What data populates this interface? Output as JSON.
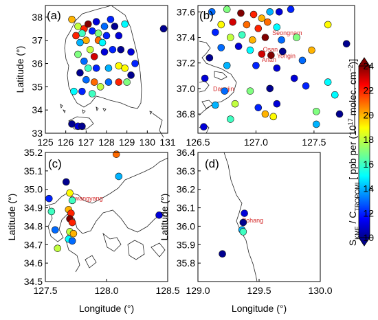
{
  "chart_data": [
    {
      "type": "scatter",
      "panel_label": "(a)",
      "xlabel": "",
      "ylabel": "Latitude (°)",
      "xlim": [
        125,
        131
      ],
      "ylim": [
        33,
        38.5
      ],
      "xticks": [
        "125",
        "126",
        "127",
        "128",
        "129",
        "130",
        "131"
      ],
      "yticks": [
        "33",
        "34",
        "35",
        "36",
        "37",
        "38"
      ],
      "cities": [],
      "points": [
        {
          "x": 126.3,
          "y": 37.9,
          "v": 20
        },
        {
          "x": 126.6,
          "y": 37.6,
          "v": 18
        },
        {
          "x": 126.9,
          "y": 37.5,
          "v": 22
        },
        {
          "x": 127.1,
          "y": 37.7,
          "v": 24
        },
        {
          "x": 126.8,
          "y": 37.3,
          "v": 16
        },
        {
          "x": 127.3,
          "y": 37.4,
          "v": 12
        },
        {
          "x": 127.0,
          "y": 37.0,
          "v": 20
        },
        {
          "x": 126.7,
          "y": 36.9,
          "v": 14
        },
        {
          "x": 127.5,
          "y": 37.8,
          "v": 11
        },
        {
          "x": 127.9,
          "y": 37.6,
          "v": 13
        },
        {
          "x": 128.4,
          "y": 37.6,
          "v": 10
        },
        {
          "x": 128.9,
          "y": 37.7,
          "v": 15
        },
        {
          "x": 128.6,
          "y": 37.2,
          "v": 11
        },
        {
          "x": 128.0,
          "y": 37.2,
          "v": 12
        },
        {
          "x": 127.6,
          "y": 37.0,
          "v": 21
        },
        {
          "x": 127.2,
          "y": 36.6,
          "v": 18
        },
        {
          "x": 126.6,
          "y": 36.4,
          "v": 17
        },
        {
          "x": 126.9,
          "y": 36.1,
          "v": 13
        },
        {
          "x": 127.4,
          "y": 36.3,
          "v": 23
        },
        {
          "x": 127.9,
          "y": 36.5,
          "v": 11
        },
        {
          "x": 128.3,
          "y": 36.6,
          "v": 12
        },
        {
          "x": 128.7,
          "y": 36.6,
          "v": 10
        },
        {
          "x": 129.2,
          "y": 36.5,
          "v": 11
        },
        {
          "x": 129.4,
          "y": 36.0,
          "v": 12
        },
        {
          "x": 128.6,
          "y": 35.9,
          "v": 19
        },
        {
          "x": 128.1,
          "y": 35.8,
          "v": 14
        },
        {
          "x": 127.5,
          "y": 35.8,
          "v": 12
        },
        {
          "x": 127.1,
          "y": 35.8,
          "v": 16
        },
        {
          "x": 126.7,
          "y": 35.6,
          "v": 10
        },
        {
          "x": 127.0,
          "y": 35.3,
          "v": 13
        },
        {
          "x": 127.4,
          "y": 35.2,
          "v": 21
        },
        {
          "x": 127.7,
          "y": 35.0,
          "v": 18
        },
        {
          "x": 128.1,
          "y": 35.2,
          "v": 13
        },
        {
          "x": 128.6,
          "y": 35.2,
          "v": 22
        },
        {
          "x": 129.0,
          "y": 35.2,
          "v": 17
        },
        {
          "x": 129.2,
          "y": 35.5,
          "v": 10
        },
        {
          "x": 128.9,
          "y": 35.8,
          "v": 19
        },
        {
          "x": 126.4,
          "y": 34.8,
          "v": 15
        },
        {
          "x": 126.8,
          "y": 34.8,
          "v": 12
        },
        {
          "x": 127.3,
          "y": 34.7,
          "v": 16
        },
        {
          "x": 126.3,
          "y": 33.4,
          "v": 10
        },
        {
          "x": 126.6,
          "y": 33.3,
          "v": 11
        },
        {
          "x": 126.8,
          "y": 33.3,
          "v": 10
        },
        {
          "x": 130.8,
          "y": 37.5,
          "v": 10
        },
        {
          "x": 127.6,
          "y": 37.3,
          "v": 17
        },
        {
          "x": 127.8,
          "y": 36.9,
          "v": 15
        },
        {
          "x": 128.2,
          "y": 37.9,
          "v": 12
        },
        {
          "x": 126.5,
          "y": 37.2,
          "v": 22
        }
      ]
    },
    {
      "type": "scatter",
      "panel_label": "(b)",
      "xlabel": "",
      "ylabel": "",
      "xlim": [
        126.5,
        127.85
      ],
      "ylim": [
        36.65,
        37.65
      ],
      "xticks": [
        "126.5",
        "127.0",
        "127.5"
      ],
      "yticks": [
        "36.8",
        "37.0",
        "37.2",
        "37.4",
        "37.6"
      ],
      "cities": [
        {
          "name": "Seongnam",
          "x": 127.14,
          "y": 37.42
        },
        {
          "name": "Osan",
          "x": 127.06,
          "y": 37.29
        },
        {
          "name": "Yongin",
          "x": 127.18,
          "y": 37.24
        },
        {
          "name": "Anan",
          "x": 127.05,
          "y": 37.21
        },
        {
          "name": "Dangjin",
          "x": 126.63,
          "y": 36.98
        }
      ],
      "points": [
        {
          "x": 126.62,
          "y": 37.6,
          "v": 13
        },
        {
          "x": 126.75,
          "y": 37.62,
          "v": 17
        },
        {
          "x": 126.87,
          "y": 37.59,
          "v": 24
        },
        {
          "x": 126.98,
          "y": 37.58,
          "v": 22
        },
        {
          "x": 127.05,
          "y": 37.55,
          "v": 20
        },
        {
          "x": 127.12,
          "y": 37.6,
          "v": 14
        },
        {
          "x": 127.2,
          "y": 37.6,
          "v": 11
        },
        {
          "x": 127.3,
          "y": 37.62,
          "v": 12
        },
        {
          "x": 126.7,
          "y": 37.5,
          "v": 19
        },
        {
          "x": 126.8,
          "y": 37.52,
          "v": 23
        },
        {
          "x": 126.92,
          "y": 37.5,
          "v": 21
        },
        {
          "x": 127.02,
          "y": 37.47,
          "v": 22
        },
        {
          "x": 127.1,
          "y": 37.52,
          "v": 21
        },
        {
          "x": 127.18,
          "y": 37.48,
          "v": 15
        },
        {
          "x": 126.65,
          "y": 37.44,
          "v": 12
        },
        {
          "x": 126.78,
          "y": 37.4,
          "v": 18
        },
        {
          "x": 126.88,
          "y": 37.42,
          "v": 16
        },
        {
          "x": 126.97,
          "y": 37.38,
          "v": 20
        },
        {
          "x": 127.08,
          "y": 37.4,
          "v": 24
        },
        {
          "x": 127.22,
          "y": 37.38,
          "v": 13
        },
        {
          "x": 127.35,
          "y": 37.4,
          "v": 17
        },
        {
          "x": 126.7,
          "y": 37.32,
          "v": 13
        },
        {
          "x": 126.85,
          "y": 37.33,
          "v": 11
        },
        {
          "x": 126.95,
          "y": 37.3,
          "v": 15
        },
        {
          "x": 127.05,
          "y": 37.27,
          "v": 23
        },
        {
          "x": 127.13,
          "y": 37.26,
          "v": 24
        },
        {
          "x": 127.23,
          "y": 37.29,
          "v": 10
        },
        {
          "x": 126.6,
          "y": 37.24,
          "v": 10
        },
        {
          "x": 126.75,
          "y": 37.18,
          "v": 14
        },
        {
          "x": 127.0,
          "y": 37.18,
          "v": 12
        },
        {
          "x": 127.18,
          "y": 37.16,
          "v": 11
        },
        {
          "x": 127.4,
          "y": 37.22,
          "v": 13
        },
        {
          "x": 127.48,
          "y": 37.3,
          "v": 20
        },
        {
          "x": 127.62,
          "y": 37.5,
          "v": 19
        },
        {
          "x": 126.56,
          "y": 37.08,
          "v": 11
        },
        {
          "x": 126.73,
          "y": 36.98,
          "v": 13
        },
        {
          "x": 126.95,
          "y": 36.98,
          "v": 17
        },
        {
          "x": 127.12,
          "y": 37.0,
          "v": 10
        },
        {
          "x": 127.33,
          "y": 37.08,
          "v": 11
        },
        {
          "x": 127.43,
          "y": 37.02,
          "v": 12
        },
        {
          "x": 127.62,
          "y": 37.05,
          "v": 15
        },
        {
          "x": 126.65,
          "y": 36.87,
          "v": 14
        },
        {
          "x": 126.82,
          "y": 36.88,
          "v": 18
        },
        {
          "x": 127.02,
          "y": 36.85,
          "v": 12
        },
        {
          "x": 127.18,
          "y": 36.88,
          "v": 11
        },
        {
          "x": 127.08,
          "y": 36.8,
          "v": 20
        },
        {
          "x": 127.15,
          "y": 36.78,
          "v": 19
        },
        {
          "x": 126.78,
          "y": 36.76,
          "v": 16
        },
        {
          "x": 127.52,
          "y": 36.82,
          "v": 17
        },
        {
          "x": 127.72,
          "y": 36.8,
          "v": 10
        },
        {
          "x": 127.68,
          "y": 36.95,
          "v": 15
        },
        {
          "x": 127.52,
          "y": 36.72,
          "v": 14
        },
        {
          "x": 126.55,
          "y": 36.7,
          "v": 11
        },
        {
          "x": 127.78,
          "y": 37.35,
          "v": 10
        }
      ]
    },
    {
      "type": "scatter",
      "panel_label": "(c)",
      "xlabel": "Longitude (°)",
      "ylabel": "Latitude (°)",
      "xlim": [
        127.5,
        128.5
      ],
      "ylim": [
        34.5,
        35.2
      ],
      "xticks": [
        "127.5",
        "128.0",
        "128.5"
      ],
      "yticks": [
        "34.5",
        "34.6",
        "34.7",
        "34.8",
        "34.9",
        "35.0",
        "35.1",
        "35.2"
      ],
      "cities": [
        {
          "name": "Gwangyang",
          "x": 127.7,
          "y": 34.94
        }
      ],
      "points": [
        {
          "x": 127.53,
          "y": 34.95,
          "v": 12
        },
        {
          "x": 127.55,
          "y": 34.88,
          "v": 16
        },
        {
          "x": 127.58,
          "y": 34.78,
          "v": 13
        },
        {
          "x": 127.6,
          "y": 34.68,
          "v": 18
        },
        {
          "x": 127.69,
          "y": 34.89,
          "v": 20
        },
        {
          "x": 127.71,
          "y": 34.87,
          "v": 22
        },
        {
          "x": 127.7,
          "y": 34.84,
          "v": 24
        },
        {
          "x": 127.72,
          "y": 34.82,
          "v": 22
        },
        {
          "x": 127.7,
          "y": 34.77,
          "v": 18
        },
        {
          "x": 127.73,
          "y": 34.76,
          "v": 20
        },
        {
          "x": 127.69,
          "y": 34.73,
          "v": 15
        },
        {
          "x": 127.72,
          "y": 34.72,
          "v": 13
        },
        {
          "x": 127.67,
          "y": 35.04,
          "v": 10
        },
        {
          "x": 127.7,
          "y": 34.98,
          "v": 19
        },
        {
          "x": 127.72,
          "y": 34.94,
          "v": 16
        },
        {
          "x": 128.08,
          "y": 35.19,
          "v": 21
        },
        {
          "x": 128.1,
          "y": 35.07,
          "v": 14
        },
        {
          "x": 128.43,
          "y": 34.86,
          "v": 11
        }
      ]
    },
    {
      "type": "scatter",
      "panel_label": "(d)",
      "xlabel": "Longitude (°)",
      "ylabel": "Latitude (°)",
      "xlim": [
        129.0,
        130.0
      ],
      "ylim": [
        35.7,
        36.4
      ],
      "xticks": [
        "129.0",
        "129.5",
        "130.0"
      ],
      "yticks": [
        "35.8",
        "35.9",
        "36.0",
        "36.1",
        "36.2",
        "36.3",
        "36.4"
      ],
      "cities": [
        {
          "name": "Pohang",
          "x": 129.36,
          "y": 36.02
        }
      ],
      "points": [
        {
          "x": 129.38,
          "y": 36.07,
          "v": 11
        },
        {
          "x": 129.37,
          "y": 36.02,
          "v": 10
        },
        {
          "x": 129.36,
          "y": 35.98,
          "v": 14
        },
        {
          "x": 129.37,
          "y": 35.97,
          "v": 16
        },
        {
          "x": 129.2,
          "y": 35.85,
          "v": 10
        }
      ]
    }
  ],
  "colorbar": {
    "title": "S",
    "title_sub": "KME",
    "title_mid": " / C",
    "title_sub2": "TROPOMI",
    "title_tail": " [ ppb per (10",
    "title_sup": "17",
    "title_end": " molec. cm",
    "title_sup2": "−2",
    "title_close": ")]",
    "min": 10,
    "max": 24,
    "ticks": [
      "10",
      "12",
      "14",
      "16",
      "18",
      "20",
      "22",
      "24"
    ]
  }
}
